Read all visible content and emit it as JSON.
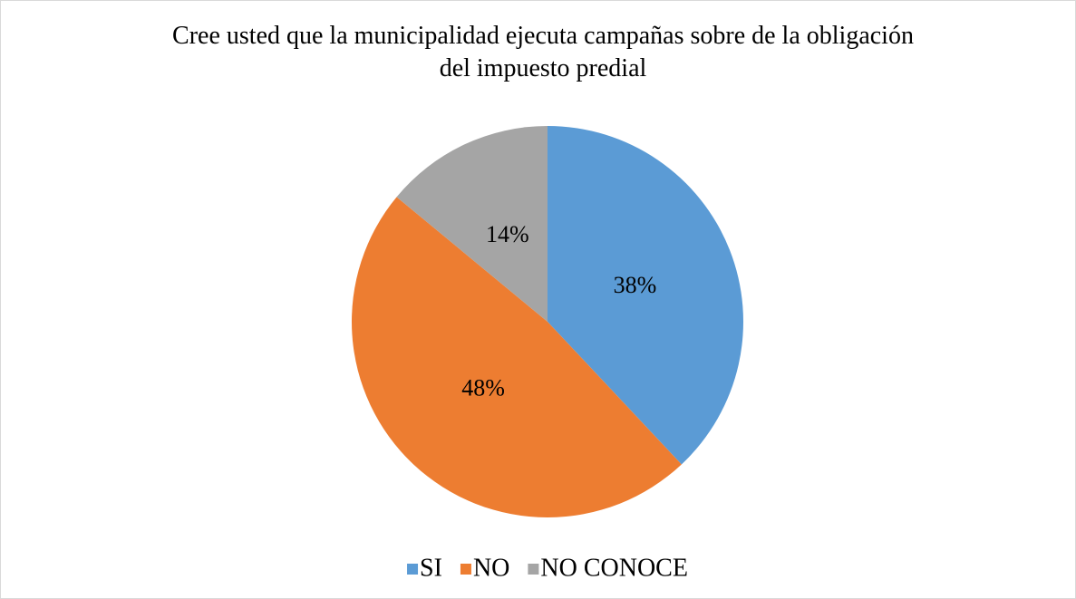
{
  "chart_data": {
    "type": "pie",
    "title": "Cree usted que la municipalidad ejecuta campañas sobre de la obligación del impuesto predial",
    "categories": [
      "SI",
      "NO",
      "NO CONOCE"
    ],
    "values": [
      38,
      48,
      14
    ],
    "value_labels": [
      "38%",
      "48%",
      "14%"
    ],
    "colors": [
      "#5b9bd5",
      "#ed7d31",
      "#a5a5a5"
    ],
    "legend": "bottom"
  }
}
